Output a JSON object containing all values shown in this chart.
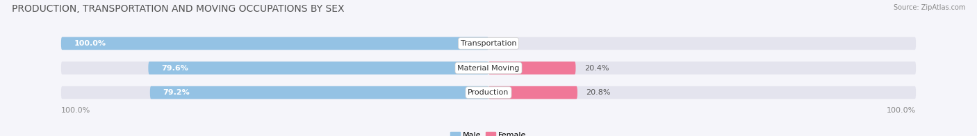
{
  "title": "PRODUCTION, TRANSPORTATION AND MOVING OCCUPATIONS BY SEX",
  "source": "Source: ZipAtlas.com",
  "categories": [
    "Transportation",
    "Material Moving",
    "Production"
  ],
  "male_values": [
    100.0,
    79.6,
    79.2
  ],
  "female_values": [
    0.0,
    20.4,
    20.8
  ],
  "male_color": "#94C2E4",
  "female_color": "#F07898",
  "bar_bg_color": "#E4E4EE",
  "bg_color": "#F5F5FA",
  "male_label": "Male",
  "female_label": "Female",
  "left_axis_label": "100.0%",
  "right_axis_label": "100.0%",
  "title_fontsize": 10,
  "source_fontsize": 7,
  "label_fontsize": 8,
  "bar_label_fontsize": 8,
  "category_fontsize": 8
}
